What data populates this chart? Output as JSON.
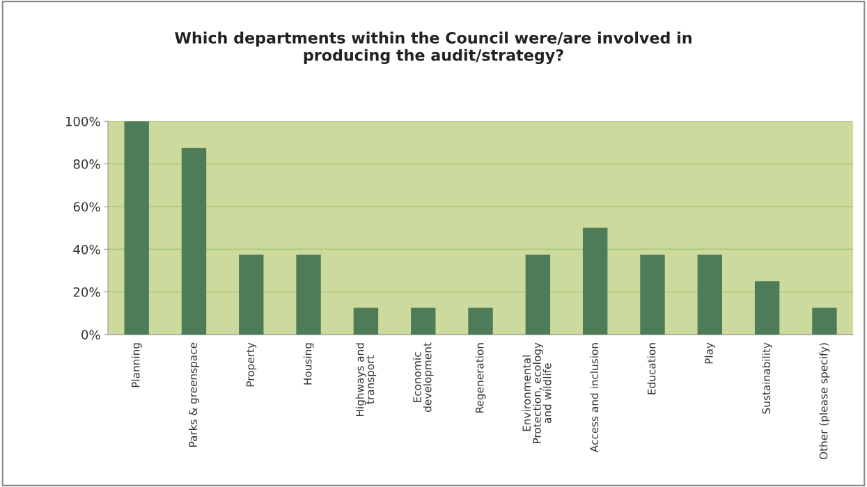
{
  "chart_data": {
    "type": "bar",
    "title": "Which departments within the Council were/are involved in\nproducing the audit/strategy?",
    "categories": [
      "Planning",
      "Parks & greenspace",
      "Property",
      "Housing",
      "Highways and\ntransport",
      "Economic\ndevelopment",
      "Regeneration",
      "Environmental\nProtection, ecology\nand wildlife",
      "Access and inclusion",
      "Education",
      "Play",
      "Sustainability",
      "Other (please specify)"
    ],
    "values": [
      100,
      87.5,
      37.5,
      37.5,
      12.5,
      12.5,
      12.5,
      37.5,
      50,
      37.5,
      37.5,
      25,
      12.5
    ],
    "color": "#4e7b58",
    "ylim": [
      0,
      100
    ],
    "yticks": [
      {
        "value": 0,
        "label": "0%"
      },
      {
        "value": 20,
        "label": "20%"
      },
      {
        "value": 40,
        "label": "40%"
      },
      {
        "value": 60,
        "label": "60%"
      },
      {
        "value": 80,
        "label": "80%"
      },
      {
        "value": 100,
        "label": "100%"
      }
    ],
    "grid": "y"
  }
}
